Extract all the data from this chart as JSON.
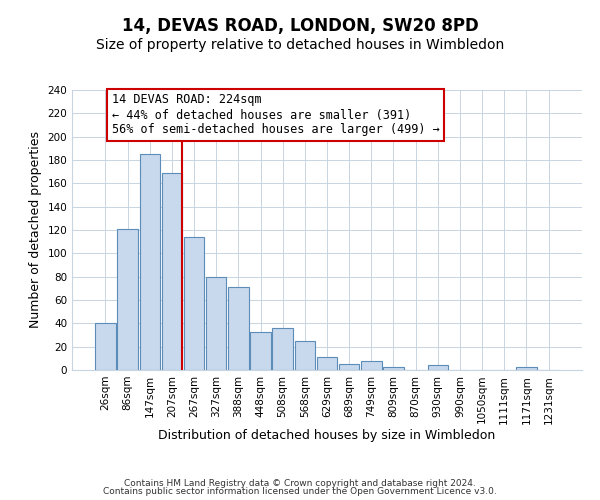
{
  "title": "14, DEVAS ROAD, LONDON, SW20 8PD",
  "subtitle": "Size of property relative to detached houses in Wimbledon",
  "xlabel": "Distribution of detached houses by size in Wimbledon",
  "ylabel": "Number of detached properties",
  "footer_line1": "Contains HM Land Registry data © Crown copyright and database right 2024.",
  "footer_line2": "Contains public sector information licensed under the Open Government Licence v3.0.",
  "bin_labels": [
    "26sqm",
    "86sqm",
    "147sqm",
    "207sqm",
    "267sqm",
    "327sqm",
    "388sqm",
    "448sqm",
    "508sqm",
    "568sqm",
    "629sqm",
    "689sqm",
    "749sqm",
    "809sqm",
    "870sqm",
    "930sqm",
    "990sqm",
    "1050sqm",
    "1111sqm",
    "1171sqm",
    "1231sqm"
  ],
  "bar_values": [
    40,
    121,
    185,
    169,
    114,
    80,
    71,
    33,
    36,
    25,
    11,
    5,
    8,
    3,
    0,
    4,
    0,
    0,
    0,
    3,
    0
  ],
  "bar_color": "#c9d9ed",
  "bar_edge_color": "#5b8db8",
  "highlight_bar_index": 3,
  "highlight_line_color": "#cc0000",
  "annotation_text": "14 DEVAS ROAD: 224sqm\n← 44% of detached houses are smaller (391)\n56% of semi-detached houses are larger (499) →",
  "annotation_box_edge_color": "#cc0000",
  "ylim": [
    0,
    240
  ],
  "yticks": [
    0,
    20,
    40,
    60,
    80,
    100,
    120,
    140,
    160,
    180,
    200,
    220,
    240
  ],
  "grid_color": "#c8d4e0",
  "background_color": "#ffffff",
  "title_fontsize": 12,
  "subtitle_fontsize": 10,
  "axis_label_fontsize": 9,
  "tick_fontsize": 7.5,
  "annotation_fontsize": 8.5,
  "footer_fontsize": 6.5
}
